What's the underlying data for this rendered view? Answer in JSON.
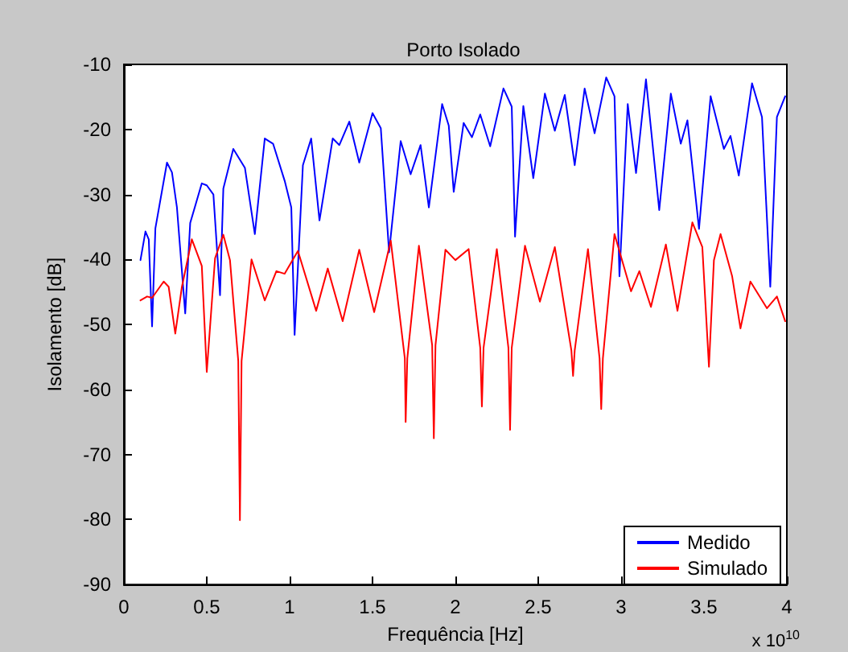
{
  "chart_data": {
    "type": "line",
    "title": "Porto Isolado",
    "xlabel": "Frequência [Hz]",
    "ylabel": "Isolamento [dB]",
    "annotations": [
      "x 10$^{10}$"
    ],
    "xlim": [
      0,
      4
    ],
    "xticks": [
      0,
      0.5,
      1,
      1.5,
      2,
      2.5,
      3,
      3.5,
      4
    ],
    "ylim": [
      -90,
      -10
    ],
    "yticks": [
      -90,
      -80,
      -70,
      -60,
      -50,
      -40,
      -30,
      -20,
      -10
    ],
    "grid": false,
    "legend": "bottom right",
    "marker": "none",
    "line_style": "solid",
    "series": [
      {
        "name": "Medido",
        "color": "#0000ff",
        "x": [
          0.1,
          0.13,
          0.15,
          0.17,
          0.19,
          0.26,
          0.29,
          0.32,
          0.37,
          0.4,
          0.47,
          0.5,
          0.54,
          0.58,
          0.6,
          0.66,
          0.73,
          0.79,
          0.85,
          0.9,
          0.97,
          1.01,
          1.03,
          1.08,
          1.13,
          1.18,
          1.26,
          1.3,
          1.36,
          1.42,
          1.5,
          1.55,
          1.6,
          1.67,
          1.73,
          1.79,
          1.84,
          1.92,
          1.96,
          1.99,
          2.05,
          2.1,
          2.15,
          2.21,
          2.29,
          2.34,
          2.36,
          2.41,
          2.47,
          2.54,
          2.6,
          2.66,
          2.72,
          2.78,
          2.84,
          2.91,
          2.96,
          2.99,
          3.04,
          3.09,
          3.15,
          3.23,
          3.3,
          3.36,
          3.4,
          3.47,
          3.54,
          3.62,
          3.66,
          3.71,
          3.79,
          3.85,
          3.9,
          3.94,
          3.99
        ],
        "values": [
          -40.1,
          -35.7,
          -36.9,
          -50.3,
          -35.2,
          -25.1,
          -26.6,
          -32,
          -48.3,
          -34.4,
          -28.3,
          -28.6,
          -30,
          -45.5,
          -29.1,
          -23,
          -25.9,
          -36.1,
          -21.4,
          -22.2,
          -27.9,
          -32,
          -51.6,
          -25.5,
          -21.4,
          -34,
          -21.4,
          -22.4,
          -18.8,
          -25.1,
          -17.5,
          -19.8,
          -38.9,
          -21.8,
          -26.9,
          -22.4,
          -32,
          -16.1,
          -19.4,
          -29.6,
          -19,
          -21.2,
          -17.7,
          -22.6,
          -13.7,
          -16.5,
          -36.5,
          -16.4,
          -27.5,
          -14.5,
          -20.2,
          -14.7,
          -25.5,
          -13.7,
          -20.6,
          -12,
          -14.9,
          -42.6,
          -16.1,
          -26.7,
          -12.3,
          -32.4,
          -14.5,
          -22.2,
          -18.6,
          -35.3,
          -14.9,
          -23,
          -21,
          -27.1,
          -12.9,
          -18.1,
          -44.2,
          -18.1,
          -14.9
        ]
      },
      {
        "name": "Simulado",
        "color": "#ff0000",
        "x": [
          0.1,
          0.14,
          0.17,
          0.24,
          0.27,
          0.31,
          0.35,
          0.41,
          0.47,
          0.5,
          0.55,
          0.6,
          0.64,
          0.69,
          0.7,
          0.71,
          0.77,
          0.85,
          0.92,
          0.97,
          1.05,
          1.16,
          1.23,
          1.32,
          1.42,
          1.51,
          1.61,
          1.695,
          1.7,
          1.71,
          1.78,
          1.86,
          1.87,
          1.88,
          1.94,
          2.0,
          2.08,
          2.15,
          2.16,
          2.17,
          2.25,
          2.32,
          2.33,
          2.34,
          2.42,
          2.51,
          2.6,
          2.7,
          2.71,
          2.72,
          2.8,
          2.87,
          2.88,
          2.89,
          2.96,
          3.06,
          3.11,
          3.18,
          3.27,
          3.34,
          3.43,
          3.49,
          3.53,
          3.56,
          3.6,
          3.67,
          3.72,
          3.78,
          3.88,
          3.94,
          3.99
        ],
        "values": [
          -46.3,
          -45.7,
          -45.9,
          -43.4,
          -44.2,
          -51.4,
          -44.2,
          -36.9,
          -41,
          -57.3,
          -39.8,
          -36.2,
          -40.1,
          -55.6,
          -80.1,
          -55.6,
          -40,
          -46.3,
          -41.8,
          -42.2,
          -38.7,
          -47.9,
          -41.4,
          -49.5,
          -38.5,
          -48.1,
          -37.1,
          -55.2,
          -65,
          -55.2,
          -37.9,
          -53.2,
          -67.5,
          -53.2,
          -38.5,
          -40.1,
          -38.4,
          -53.6,
          -62.6,
          -53.6,
          -38.4,
          -53.6,
          -66.2,
          -53.6,
          -37.9,
          -46.5,
          -38.1,
          -54,
          -57.9,
          -54,
          -38.4,
          -55.2,
          -63,
          -55.2,
          -36.1,
          -44.9,
          -41.8,
          -47.3,
          -37.7,
          -47.9,
          -34.3,
          -38.1,
          -56.5,
          -40.1,
          -36.1,
          -42.6,
          -50.6,
          -43.4,
          -47.5,
          -45.7,
          -49.5
        ]
      }
    ]
  }
}
